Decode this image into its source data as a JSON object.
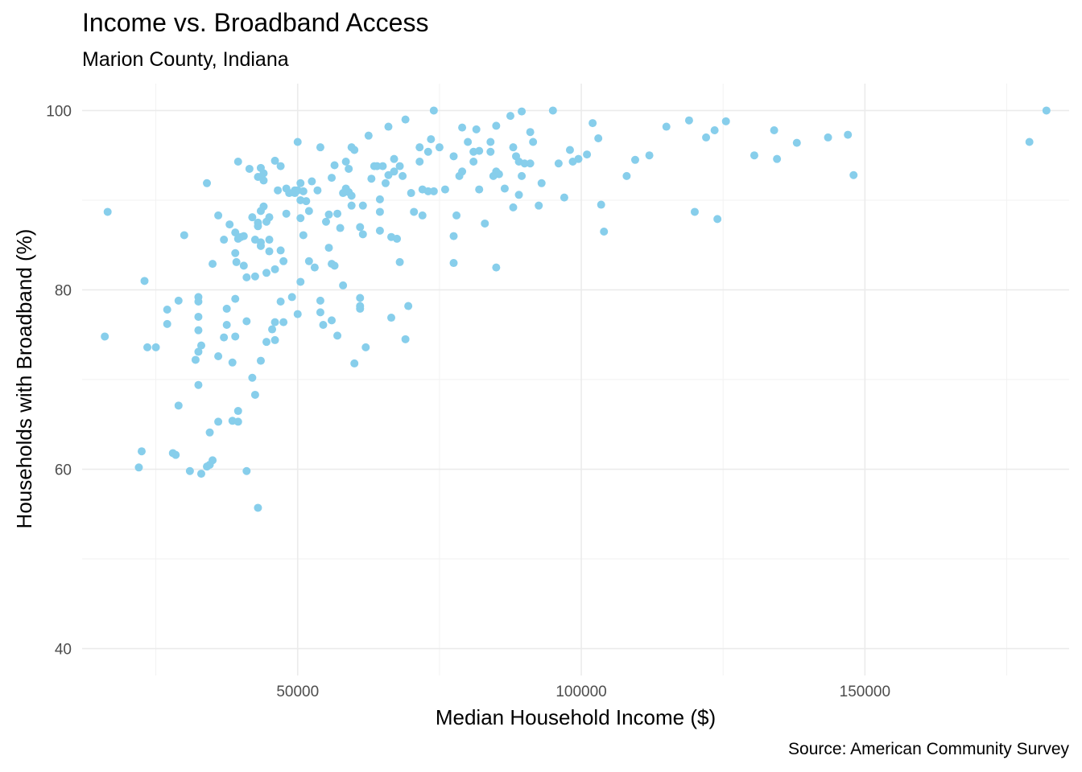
{
  "chart_data": {
    "type": "scatter",
    "title": "Income vs. Broadband Access",
    "subtitle": "Marion County, Indiana",
    "xlabel": "Median Household Income ($)",
    "ylabel": "Households with Broadband (%)",
    "caption": "Source: American Community Survey",
    "xlim": [
      12000,
      186000
    ],
    "ylim": [
      37,
      103
    ],
    "x_ticks": [
      50000,
      100000,
      150000
    ],
    "x_tick_labels": [
      "50000",
      "100000",
      "150000"
    ],
    "y_ticks": [
      40,
      60,
      80,
      100
    ],
    "y_tick_labels": [
      "40",
      "60",
      "80",
      "100"
    ],
    "grid": true,
    "point_color": "#87CEEB",
    "points": [
      [
        16000,
        74.8
      ],
      [
        16500,
        88.7
      ],
      [
        22000,
        60.2
      ],
      [
        22500,
        62.0
      ],
      [
        23000,
        81.0
      ],
      [
        23500,
        73.6
      ],
      [
        25000,
        73.6
      ],
      [
        27000,
        77.8
      ],
      [
        27000,
        76.2
      ],
      [
        28000,
        61.8
      ],
      [
        28500,
        61.6
      ],
      [
        29000,
        67.1
      ],
      [
        29000,
        78.8
      ],
      [
        30000,
        86.1
      ],
      [
        31000,
        59.8
      ],
      [
        32000,
        72.2
      ],
      [
        32500,
        79.2
      ],
      [
        32500,
        78.7
      ],
      [
        32500,
        77.0
      ],
      [
        32500,
        75.5
      ],
      [
        32500,
        73.1
      ],
      [
        32500,
        69.4
      ],
      [
        33000,
        59.5
      ],
      [
        33000,
        73.8
      ],
      [
        34000,
        60.3
      ],
      [
        34000,
        91.9
      ],
      [
        34500,
        64.1
      ],
      [
        34500,
        60.5
      ],
      [
        35000,
        82.9
      ],
      [
        35000,
        61.0
      ],
      [
        36000,
        88.3
      ],
      [
        36000,
        65.3
      ],
      [
        36000,
        72.6
      ],
      [
        37000,
        85.6
      ],
      [
        37000,
        74.7
      ],
      [
        37500,
        77.9
      ],
      [
        37500,
        76.1
      ],
      [
        38000,
        87.3
      ],
      [
        38500,
        65.4
      ],
      [
        38500,
        71.9
      ],
      [
        39000,
        86.4
      ],
      [
        39000,
        84.1
      ],
      [
        39000,
        79.0
      ],
      [
        39000,
        74.8
      ],
      [
        39200,
        83.1
      ],
      [
        39500,
        85.7
      ],
      [
        39500,
        66.5
      ],
      [
        39500,
        65.3
      ],
      [
        39500,
        94.3
      ],
      [
        40000,
        85.9
      ],
      [
        40500,
        82.7
      ],
      [
        40500,
        86.0
      ],
      [
        41000,
        81.4
      ],
      [
        41000,
        76.5
      ],
      [
        41000,
        59.8
      ],
      [
        41500,
        93.5
      ],
      [
        42000,
        88.1
      ],
      [
        42000,
        70.2
      ],
      [
        42500,
        81.5
      ],
      [
        42500,
        85.6
      ],
      [
        42500,
        68.3
      ],
      [
        43000,
        55.7
      ],
      [
        43000,
        92.6
      ],
      [
        43000,
        87.1
      ],
      [
        43000,
        87.5
      ],
      [
        43500,
        93.6
      ],
      [
        43500,
        88.8
      ],
      [
        43500,
        85.3
      ],
      [
        43500,
        84.9
      ],
      [
        43500,
        72.1
      ],
      [
        44000,
        89.3
      ],
      [
        44000,
        92.2
      ],
      [
        44000,
        93.0
      ],
      [
        44500,
        81.9
      ],
      [
        44500,
        74.2
      ],
      [
        44500,
        87.6
      ],
      [
        45000,
        88.1
      ],
      [
        45000,
        85.6
      ],
      [
        45000,
        84.3
      ],
      [
        45500,
        75.6
      ],
      [
        46000,
        94.4
      ],
      [
        46000,
        82.3
      ],
      [
        46000,
        76.4
      ],
      [
        46000,
        74.4
      ],
      [
        46500,
        91.1
      ],
      [
        47000,
        93.8
      ],
      [
        47000,
        84.4
      ],
      [
        47000,
        78.7
      ],
      [
        47500,
        83.2
      ],
      [
        47500,
        76.4
      ],
      [
        48000,
        88.5
      ],
      [
        48000,
        91.3
      ],
      [
        48500,
        90.8
      ],
      [
        49000,
        79.2
      ],
      [
        49500,
        91.1
      ],
      [
        49500,
        90.8
      ],
      [
        50000,
        96.5
      ],
      [
        50000,
        77.3
      ],
      [
        50000,
        91.1
      ],
      [
        50500,
        90.0
      ],
      [
        50500,
        88.0
      ],
      [
        50500,
        80.9
      ],
      [
        50500,
        91.9
      ],
      [
        51000,
        86.1
      ],
      [
        51000,
        91.0
      ],
      [
        51500,
        89.9
      ],
      [
        52000,
        88.8
      ],
      [
        52000,
        83.2
      ],
      [
        52500,
        92.1
      ],
      [
        53000,
        82.5
      ],
      [
        53500,
        91.1
      ],
      [
        54000,
        95.9
      ],
      [
        54000,
        78.8
      ],
      [
        54000,
        77.5
      ],
      [
        54500,
        76.1
      ],
      [
        55000,
        87.6
      ],
      [
        55500,
        88.4
      ],
      [
        55500,
        84.7
      ],
      [
        56000,
        92.5
      ],
      [
        56000,
        82.9
      ],
      [
        56000,
        76.6
      ],
      [
        56500,
        93.9
      ],
      [
        56500,
        82.7
      ],
      [
        57000,
        88.5
      ],
      [
        57000,
        74.9
      ],
      [
        57500,
        86.9
      ],
      [
        58000,
        80.5
      ],
      [
        58000,
        90.8
      ],
      [
        58500,
        94.3
      ],
      [
        58500,
        91.3
      ],
      [
        59000,
        90.9
      ],
      [
        59000,
        93.5
      ],
      [
        59500,
        89.4
      ],
      [
        59500,
        90.5
      ],
      [
        59500,
        95.9
      ],
      [
        60000,
        95.6
      ],
      [
        60000,
        71.8
      ],
      [
        61000,
        87.0
      ],
      [
        61000,
        77.9
      ],
      [
        61000,
        78.2
      ],
      [
        61000,
        79.1
      ],
      [
        61500,
        86.2
      ],
      [
        61500,
        89.4
      ],
      [
        62000,
        73.6
      ],
      [
        62500,
        97.2
      ],
      [
        63000,
        92.4
      ],
      [
        63500,
        93.8
      ],
      [
        64000,
        93.8
      ],
      [
        64500,
        90.1
      ],
      [
        64500,
        88.7
      ],
      [
        64500,
        86.6
      ],
      [
        65000,
        93.8
      ],
      [
        65500,
        91.9
      ],
      [
        66000,
        98.2
      ],
      [
        66000,
        92.8
      ],
      [
        66500,
        76.9
      ],
      [
        66500,
        85.9
      ],
      [
        67000,
        94.6
      ],
      [
        67000,
        93.2
      ],
      [
        67500,
        85.7
      ],
      [
        68000,
        83.1
      ],
      [
        68000,
        93.8
      ],
      [
        68500,
        92.7
      ],
      [
        69000,
        99.0
      ],
      [
        69000,
        74.5
      ],
      [
        69500,
        78.2
      ],
      [
        70000,
        90.8
      ],
      [
        70500,
        88.7
      ],
      [
        71500,
        94.3
      ],
      [
        71500,
        95.9
      ],
      [
        72000,
        88.3
      ],
      [
        72000,
        91.2
      ],
      [
        73000,
        91.0
      ],
      [
        73000,
        95.4
      ],
      [
        73500,
        96.8
      ],
      [
        74000,
        100.0
      ],
      [
        74000,
        91.0
      ],
      [
        75000,
        95.9
      ],
      [
        76000,
        91.2
      ],
      [
        77500,
        83.0
      ],
      [
        77500,
        94.9
      ],
      [
        77500,
        86.0
      ],
      [
        78000,
        88.3
      ],
      [
        78500,
        92.7
      ],
      [
        79000,
        98.1
      ],
      [
        79000,
        93.2
      ],
      [
        80000,
        96.5
      ],
      [
        81000,
        95.4
      ],
      [
        81000,
        94.3
      ],
      [
        81500,
        97.9
      ],
      [
        82000,
        95.5
      ],
      [
        82000,
        91.2
      ],
      [
        83000,
        87.4
      ],
      [
        84000,
        95.4
      ],
      [
        84000,
        96.5
      ],
      [
        84500,
        92.7
      ],
      [
        85000,
        98.3
      ],
      [
        85000,
        93.2
      ],
      [
        85000,
        82.5
      ],
      [
        85500,
        92.9
      ],
      [
        86500,
        91.3
      ],
      [
        87500,
        99.4
      ],
      [
        88000,
        95.9
      ],
      [
        88000,
        89.2
      ],
      [
        88500,
        94.9
      ],
      [
        89000,
        94.3
      ],
      [
        89000,
        90.6
      ],
      [
        89500,
        99.9
      ],
      [
        89500,
        92.7
      ],
      [
        90000,
        94.1
      ],
      [
        91000,
        94.1
      ],
      [
        91000,
        97.6
      ],
      [
        91500,
        96.5
      ],
      [
        92500,
        89.4
      ],
      [
        93000,
        91.9
      ],
      [
        95000,
        100.0
      ],
      [
        96000,
        94.1
      ],
      [
        97000,
        90.3
      ],
      [
        98000,
        95.6
      ],
      [
        98500,
        94.3
      ],
      [
        99500,
        94.6
      ],
      [
        101000,
        95.1
      ],
      [
        102000,
        98.6
      ],
      [
        103000,
        96.9
      ],
      [
        103500,
        89.5
      ],
      [
        104000,
        86.5
      ],
      [
        108000,
        92.7
      ],
      [
        109500,
        94.5
      ],
      [
        112000,
        95.0
      ],
      [
        115000,
        98.2
      ],
      [
        119000,
        98.9
      ],
      [
        120000,
        88.7
      ],
      [
        122000,
        97.0
      ],
      [
        123500,
        97.8
      ],
      [
        124000,
        87.9
      ],
      [
        125500,
        98.8
      ],
      [
        130500,
        95.0
      ],
      [
        134000,
        97.8
      ],
      [
        134500,
        94.6
      ],
      [
        138000,
        96.4
      ],
      [
        143500,
        97.0
      ],
      [
        147000,
        97.3
      ],
      [
        148000,
        92.8
      ],
      [
        179000,
        96.5
      ],
      [
        182000,
        100.0
      ]
    ]
  }
}
